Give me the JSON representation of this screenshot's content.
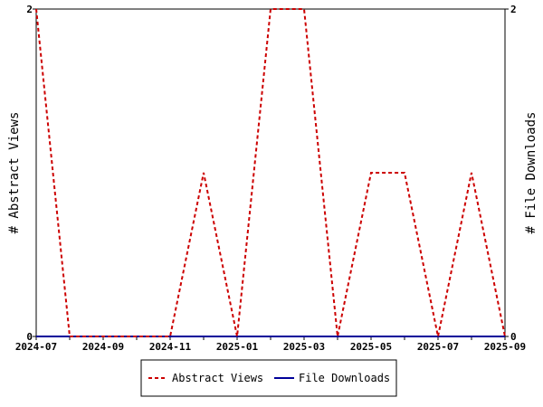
{
  "chart_data": {
    "type": "line",
    "x_ticks": [
      "2024-07",
      "2024-09",
      "2024-11",
      "2025-01",
      "2025-03",
      "2025-05",
      "2025-07",
      "2025-09"
    ],
    "x": [
      "2024-07",
      "2024-08",
      "2024-09",
      "2024-10",
      "2024-11",
      "2024-12",
      "2025-01",
      "2025-02",
      "2025-03",
      "2025-04",
      "2025-05",
      "2025-06",
      "2025-07",
      "2025-08",
      "2025-09"
    ],
    "series": [
      {
        "name": "Abstract Views",
        "axis": "left",
        "color": "#cc0000",
        "style": "dashed",
        "values": [
          2,
          0,
          0,
          0,
          0,
          1,
          0,
          2,
          2,
          0,
          1,
          1,
          0,
          1,
          0
        ]
      },
      {
        "name": "File Downloads",
        "axis": "right",
        "color": "#000099",
        "style": "solid",
        "values": [
          0,
          0,
          0,
          0,
          0,
          0,
          0,
          0,
          0,
          0,
          0,
          0,
          0,
          0,
          0
        ]
      }
    ],
    "ylabel_left": "# Abstract Views",
    "ylabel_right": "# File Downloads",
    "ylim_left": [
      0,
      2
    ],
    "ylim_right": [
      0,
      2
    ],
    "y_ticks_left": [
      "0",
      "2"
    ],
    "y_ticks_right": [
      "0",
      "2"
    ],
    "grid": false,
    "legend_position": "bottom"
  },
  "legend": {
    "views_label": "Abstract Views",
    "downloads_label": "File Downloads"
  }
}
